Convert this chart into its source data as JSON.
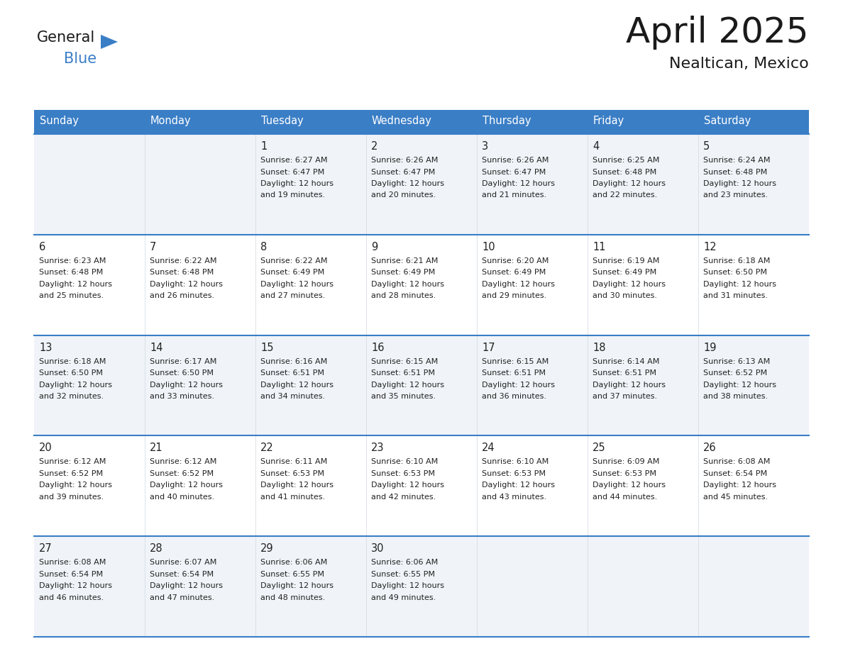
{
  "title": "April 2025",
  "subtitle": "Nealtican, Mexico",
  "header_color": "#3A7EC6",
  "header_text_color": "#FFFFFF",
  "cell_bg_light": "#F0F4F8",
  "cell_bg_white": "#FFFFFF",
  "border_color": "#3A7EC6",
  "text_color": "#222222",
  "days_of_week": [
    "Sunday",
    "Monday",
    "Tuesday",
    "Wednesday",
    "Thursday",
    "Friday",
    "Saturday"
  ],
  "calendar": [
    [
      {
        "day": "",
        "sunrise": "",
        "sunset": "",
        "daylight_min": 0,
        "show": false
      },
      {
        "day": "",
        "sunrise": "",
        "sunset": "",
        "daylight_min": 0,
        "show": false
      },
      {
        "day": "1",
        "sunrise": "6:27 AM",
        "sunset": "6:47 PM",
        "daylight_min": 19,
        "show": true
      },
      {
        "day": "2",
        "sunrise": "6:26 AM",
        "sunset": "6:47 PM",
        "daylight_min": 20,
        "show": true
      },
      {
        "day": "3",
        "sunrise": "6:26 AM",
        "sunset": "6:47 PM",
        "daylight_min": 21,
        "show": true
      },
      {
        "day": "4",
        "sunrise": "6:25 AM",
        "sunset": "6:48 PM",
        "daylight_min": 22,
        "show": true
      },
      {
        "day": "5",
        "sunrise": "6:24 AM",
        "sunset": "6:48 PM",
        "daylight_min": 23,
        "show": true
      }
    ],
    [
      {
        "day": "6",
        "sunrise": "6:23 AM",
        "sunset": "6:48 PM",
        "daylight_min": 25,
        "show": true
      },
      {
        "day": "7",
        "sunrise": "6:22 AM",
        "sunset": "6:48 PM",
        "daylight_min": 26,
        "show": true
      },
      {
        "day": "8",
        "sunrise": "6:22 AM",
        "sunset": "6:49 PM",
        "daylight_min": 27,
        "show": true
      },
      {
        "day": "9",
        "sunrise": "6:21 AM",
        "sunset": "6:49 PM",
        "daylight_min": 28,
        "show": true
      },
      {
        "day": "10",
        "sunrise": "6:20 AM",
        "sunset": "6:49 PM",
        "daylight_min": 29,
        "show": true
      },
      {
        "day": "11",
        "sunrise": "6:19 AM",
        "sunset": "6:49 PM",
        "daylight_min": 30,
        "show": true
      },
      {
        "day": "12",
        "sunrise": "6:18 AM",
        "sunset": "6:50 PM",
        "daylight_min": 31,
        "show": true
      }
    ],
    [
      {
        "day": "13",
        "sunrise": "6:18 AM",
        "sunset": "6:50 PM",
        "daylight_min": 32,
        "show": true
      },
      {
        "day": "14",
        "sunrise": "6:17 AM",
        "sunset": "6:50 PM",
        "daylight_min": 33,
        "show": true
      },
      {
        "day": "15",
        "sunrise": "6:16 AM",
        "sunset": "6:51 PM",
        "daylight_min": 34,
        "show": true
      },
      {
        "day": "16",
        "sunrise": "6:15 AM",
        "sunset": "6:51 PM",
        "daylight_min": 35,
        "show": true
      },
      {
        "day": "17",
        "sunrise": "6:15 AM",
        "sunset": "6:51 PM",
        "daylight_min": 36,
        "show": true
      },
      {
        "day": "18",
        "sunrise": "6:14 AM",
        "sunset": "6:51 PM",
        "daylight_min": 37,
        "show": true
      },
      {
        "day": "19",
        "sunrise": "6:13 AM",
        "sunset": "6:52 PM",
        "daylight_min": 38,
        "show": true
      }
    ],
    [
      {
        "day": "20",
        "sunrise": "6:12 AM",
        "sunset": "6:52 PM",
        "daylight_min": 39,
        "show": true
      },
      {
        "day": "21",
        "sunrise": "6:12 AM",
        "sunset": "6:52 PM",
        "daylight_min": 40,
        "show": true
      },
      {
        "day": "22",
        "sunrise": "6:11 AM",
        "sunset": "6:53 PM",
        "daylight_min": 41,
        "show": true
      },
      {
        "day": "23",
        "sunrise": "6:10 AM",
        "sunset": "6:53 PM",
        "daylight_min": 42,
        "show": true
      },
      {
        "day": "24",
        "sunrise": "6:10 AM",
        "sunset": "6:53 PM",
        "daylight_min": 43,
        "show": true
      },
      {
        "day": "25",
        "sunrise": "6:09 AM",
        "sunset": "6:53 PM",
        "daylight_min": 44,
        "show": true
      },
      {
        "day": "26",
        "sunrise": "6:08 AM",
        "sunset": "6:54 PM",
        "daylight_min": 45,
        "show": true
      }
    ],
    [
      {
        "day": "27",
        "sunrise": "6:08 AM",
        "sunset": "6:54 PM",
        "daylight_min": 46,
        "show": true
      },
      {
        "day": "28",
        "sunrise": "6:07 AM",
        "sunset": "6:54 PM",
        "daylight_min": 47,
        "show": true
      },
      {
        "day": "29",
        "sunrise": "6:06 AM",
        "sunset": "6:55 PM",
        "daylight_min": 48,
        "show": true
      },
      {
        "day": "30",
        "sunrise": "6:06 AM",
        "sunset": "6:55 PM",
        "daylight_min": 49,
        "show": true
      },
      {
        "day": "",
        "sunrise": "",
        "sunset": "",
        "daylight_min": 0,
        "show": false
      },
      {
        "day": "",
        "sunrise": "",
        "sunset": "",
        "daylight_min": 0,
        "show": false
      },
      {
        "day": "",
        "sunrise": "",
        "sunset": "",
        "daylight_min": 0,
        "show": false
      }
    ]
  ]
}
